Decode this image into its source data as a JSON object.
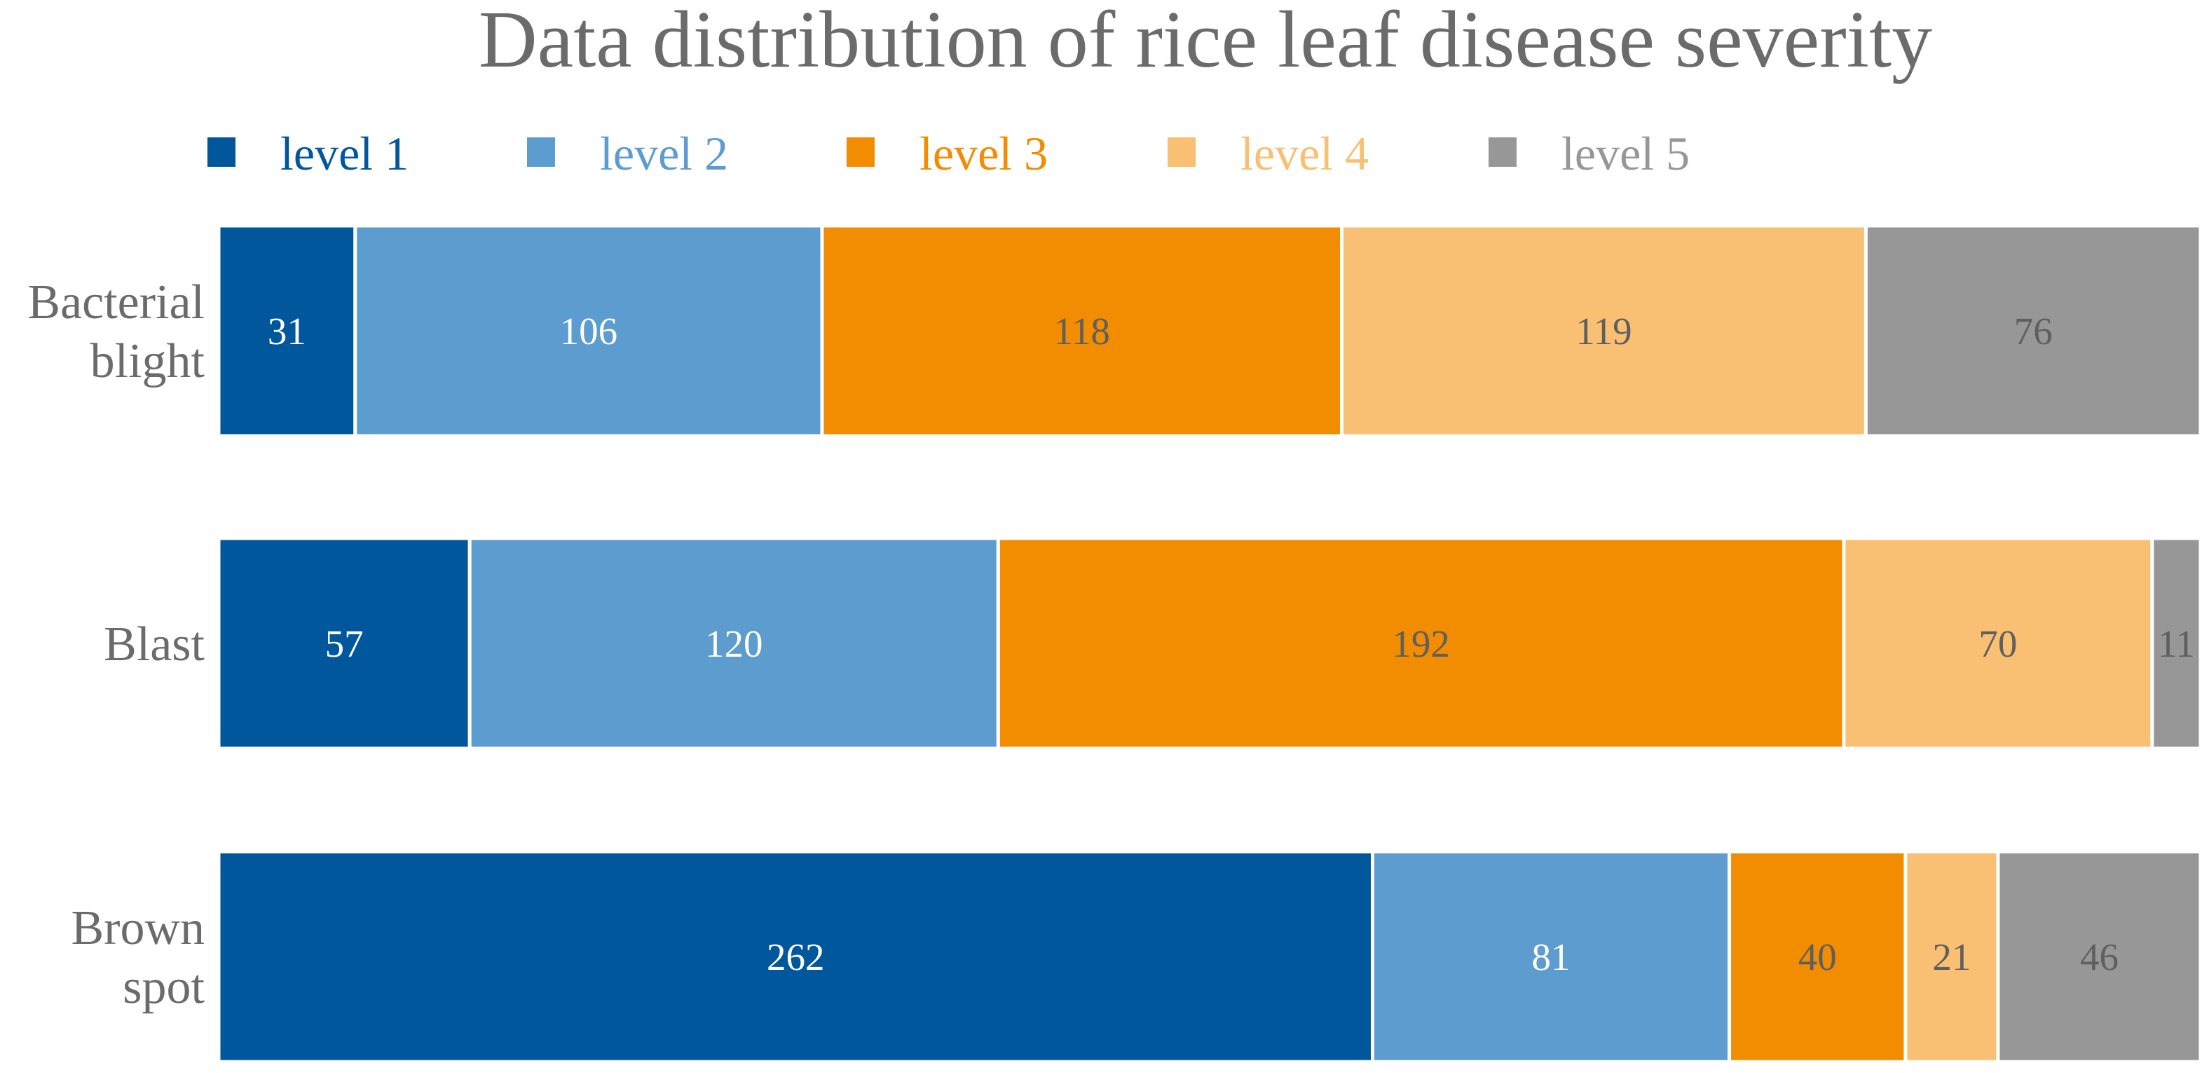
{
  "chart_data": {
    "type": "bar",
    "orientation": "horizontal",
    "stacked": true,
    "normalized": true,
    "title": "Data distribution of rice leaf disease severity",
    "xlabel": "",
    "ylabel": "",
    "grid": false,
    "legend": "top",
    "categories": [
      "Bacterial blight",
      "Blast",
      "Brown spot"
    ],
    "category_lines": [
      [
        "Bacterial",
        "blight"
      ],
      [
        "Blast"
      ],
      [
        "Brown",
        "spot"
      ]
    ],
    "series": [
      {
        "name": "level 1",
        "color": "#01579b",
        "label_color": "#ffffff",
        "values": [
          31,
          57,
          262
        ]
      },
      {
        "name": "level 2",
        "color": "#5d9ccf",
        "label_color": "#ffffff",
        "values": [
          106,
          120,
          81
        ]
      },
      {
        "name": "level 3",
        "color": "#f28c00",
        "label_color": "#5f5f5f",
        "values": [
          118,
          192,
          40
        ]
      },
      {
        "name": "level 4",
        "color": "#f9c074",
        "label_color": "#5f5f5f",
        "values": [
          119,
          70,
          21
        ]
      },
      {
        "name": "level 5",
        "color": "#979797",
        "label_color": "#5f5f5f",
        "values": [
          76,
          11,
          46
        ]
      }
    ]
  }
}
